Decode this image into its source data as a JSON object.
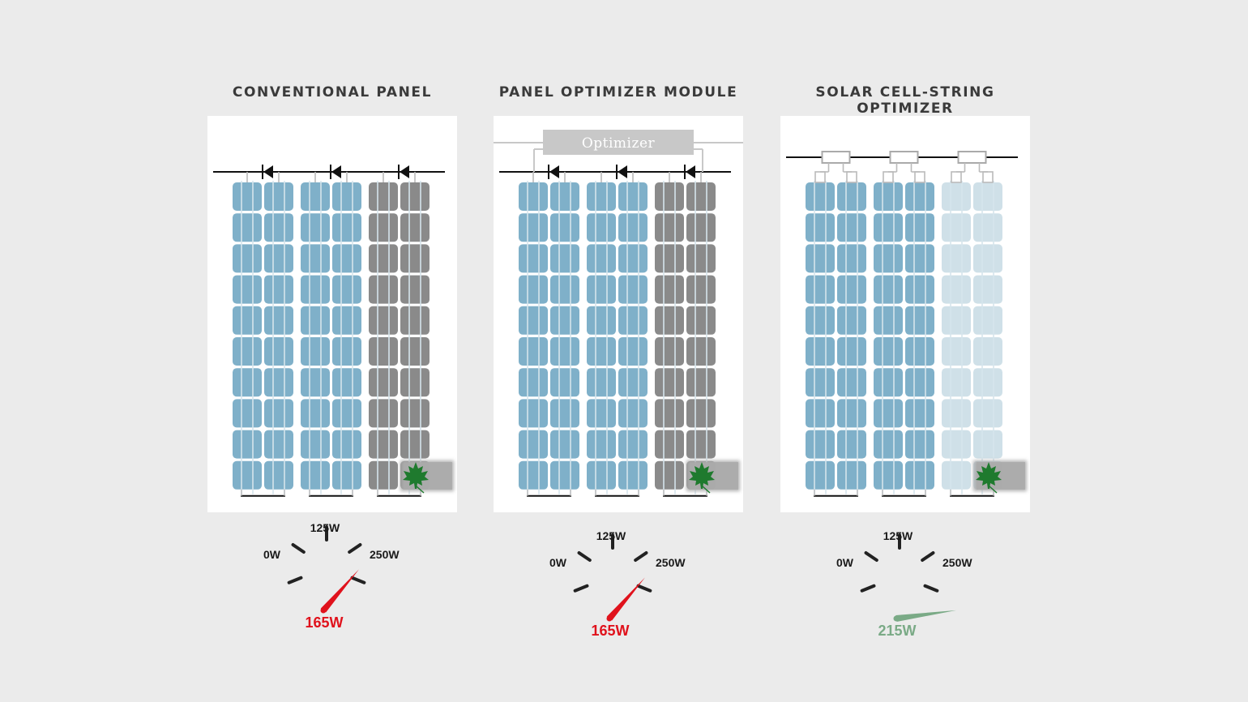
{
  "colors": {
    "background": "#ebebeb",
    "panel_bg": "#ffffff",
    "cell_blue": "#7fb0c9",
    "cell_shaded_dark": "#8a8a8a",
    "cell_shaded_light": "#cfe0e8",
    "shadow_box": "#aaaaaa",
    "optimizer_box": "#c8c8c8",
    "needle_red": "#e0121c",
    "needle_green": "#7aaa86",
    "leaf_green": "#1f7a2e"
  },
  "panels": [
    {
      "title": "CONVENTIONAL PANEL",
      "type": "conventional",
      "gauge": {
        "label_min": "0W",
        "label_mid": "125W",
        "label_max": "250W",
        "min": 0,
        "max": 250,
        "value": 165,
        "value_label": "165W",
        "needle_color": "needle_red"
      }
    },
    {
      "title": "PANEL OPTIMIZER MODULE",
      "type": "panel-optimizer",
      "optimizer_label": "Optimizer",
      "gauge": {
        "label_min": "0W",
        "label_mid": "125W",
        "label_max": "250W",
        "min": 0,
        "max": 250,
        "value": 165,
        "value_label": "165W",
        "needle_color": "needle_red"
      }
    },
    {
      "title": "SOLAR CELL-STRING OPTIMIZER",
      "type": "cell-string-optimizer",
      "gauge": {
        "label_min": "0W",
        "label_mid": "125W",
        "label_max": "250W",
        "min": 0,
        "max": 250,
        "value": 215,
        "value_label": "215W",
        "needle_color": "needle_green"
      }
    }
  ],
  "icons": {
    "leaf": "maple-leaf-icon",
    "diode": "diode-icon",
    "optimizer_chip": "optimizer-chip-icon"
  }
}
